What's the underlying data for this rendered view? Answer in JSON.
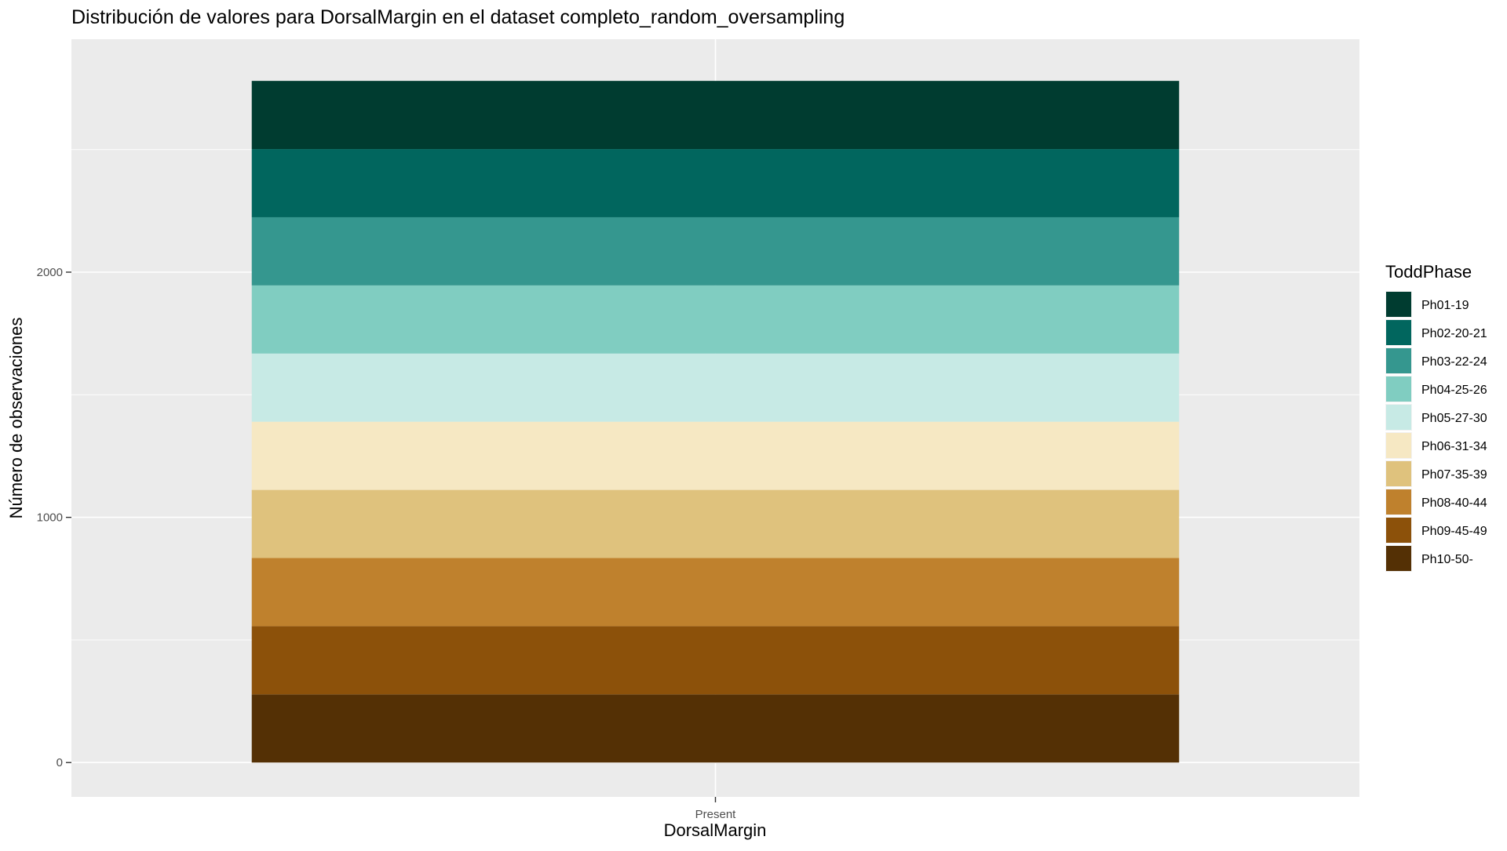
{
  "chart_data": {
    "type": "bar",
    "stacked": true,
    "title": "Distribución de valores para DorsalMargin en el dataset completo_random_oversampling",
    "xlabel": "DorsalMargin",
    "ylabel": "Número de observaciones",
    "categories": [
      "Present"
    ],
    "ylim": [
      -140,
      2950
    ],
    "yticks": [
      0,
      1000,
      2000
    ],
    "grid": true,
    "legend_title": "ToddPhase",
    "legend_position": "right",
    "series": [
      {
        "name": "Ph01-19",
        "values": [
          278
        ],
        "color": "#003C30"
      },
      {
        "name": "Ph02-20-21",
        "values": [
          278
        ],
        "color": "#01665E"
      },
      {
        "name": "Ph03-22-24",
        "values": [
          278
        ],
        "color": "#35978F"
      },
      {
        "name": "Ph04-25-26",
        "values": [
          278
        ],
        "color": "#80CDC1"
      },
      {
        "name": "Ph05-27-30",
        "values": [
          278
        ],
        "color": "#C7EAE5"
      },
      {
        "name": "Ph06-31-34",
        "values": [
          278
        ],
        "color": "#F6E8C3"
      },
      {
        "name": "Ph07-35-39",
        "values": [
          278
        ],
        "color": "#DFC27D"
      },
      {
        "name": "Ph08-40-44",
        "values": [
          278
        ],
        "color": "#BF812D"
      },
      {
        "name": "Ph09-45-49",
        "values": [
          278
        ],
        "color": "#8C510A"
      },
      {
        "name": "Ph10-50-",
        "values": [
          278
        ],
        "color": "#543005"
      }
    ]
  }
}
